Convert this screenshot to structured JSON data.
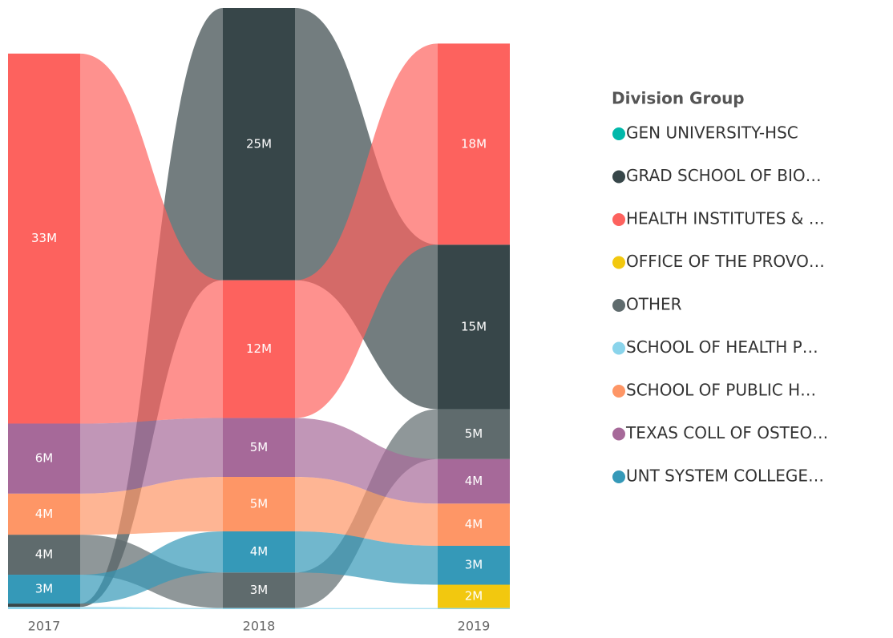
{
  "chart_data": {
    "type": "ribbon",
    "categories": [
      "2017",
      "2018",
      "2019"
    ],
    "legend_title": "Division Group",
    "series": [
      {
        "name": "GEN UNIVERSITY-HSC",
        "color": "#01B8AA",
        "values": [
          null,
          null,
          null
        ],
        "value_labels": [
          null,
          null,
          null
        ]
      },
      {
        "name": "GRAD SCHOOL OF BIO…",
        "color": "#374649",
        "values": [
          300000,
          24500000,
          14800000
        ],
        "value_labels": [
          null,
          "25M",
          "15M"
        ]
      },
      {
        "name": "HEALTH INSTITUTES & …",
        "color": "#FD625E",
        "values": [
          33300000,
          12400000,
          18100000
        ],
        "value_labels": [
          "33M",
          "12M",
          "18M"
        ]
      },
      {
        "name": "OFFICE OF THE PROVO…",
        "color": "#F2C80F",
        "values": [
          null,
          null,
          2100000
        ],
        "value_labels": [
          null,
          null,
          "2M"
        ]
      },
      {
        "name": "OTHER",
        "color": "#5F6B6D",
        "values": [
          3600000,
          3200000,
          4500000
        ],
        "value_labels": [
          "4M",
          "3M",
          "5M"
        ]
      },
      {
        "name": "SCHOOL OF HEALTH P…",
        "color": "#8AD4EB",
        "values": [
          200000,
          100000,
          100000
        ],
        "value_labels": [
          null,
          null,
          null
        ]
      },
      {
        "name": "SCHOOL OF PUBLIC H…",
        "color": "#FE9666",
        "values": [
          3700000,
          4900000,
          3800000
        ],
        "value_labels": [
          "4M",
          "5M",
          "4M"
        ]
      },
      {
        "name": "TEXAS COLL OF OSTEO…",
        "color": "#A66999",
        "values": [
          6300000,
          5300000,
          4000000
        ],
        "value_labels": [
          "6M",
          "5M",
          "4M"
        ]
      },
      {
        "name": "UNT SYSTEM COLLEGE…",
        "color": "#3599B8",
        "values": [
          2600000,
          3700000,
          3500000
        ],
        "value_labels": [
          "3M",
          "4M",
          "3M"
        ]
      }
    ]
  }
}
